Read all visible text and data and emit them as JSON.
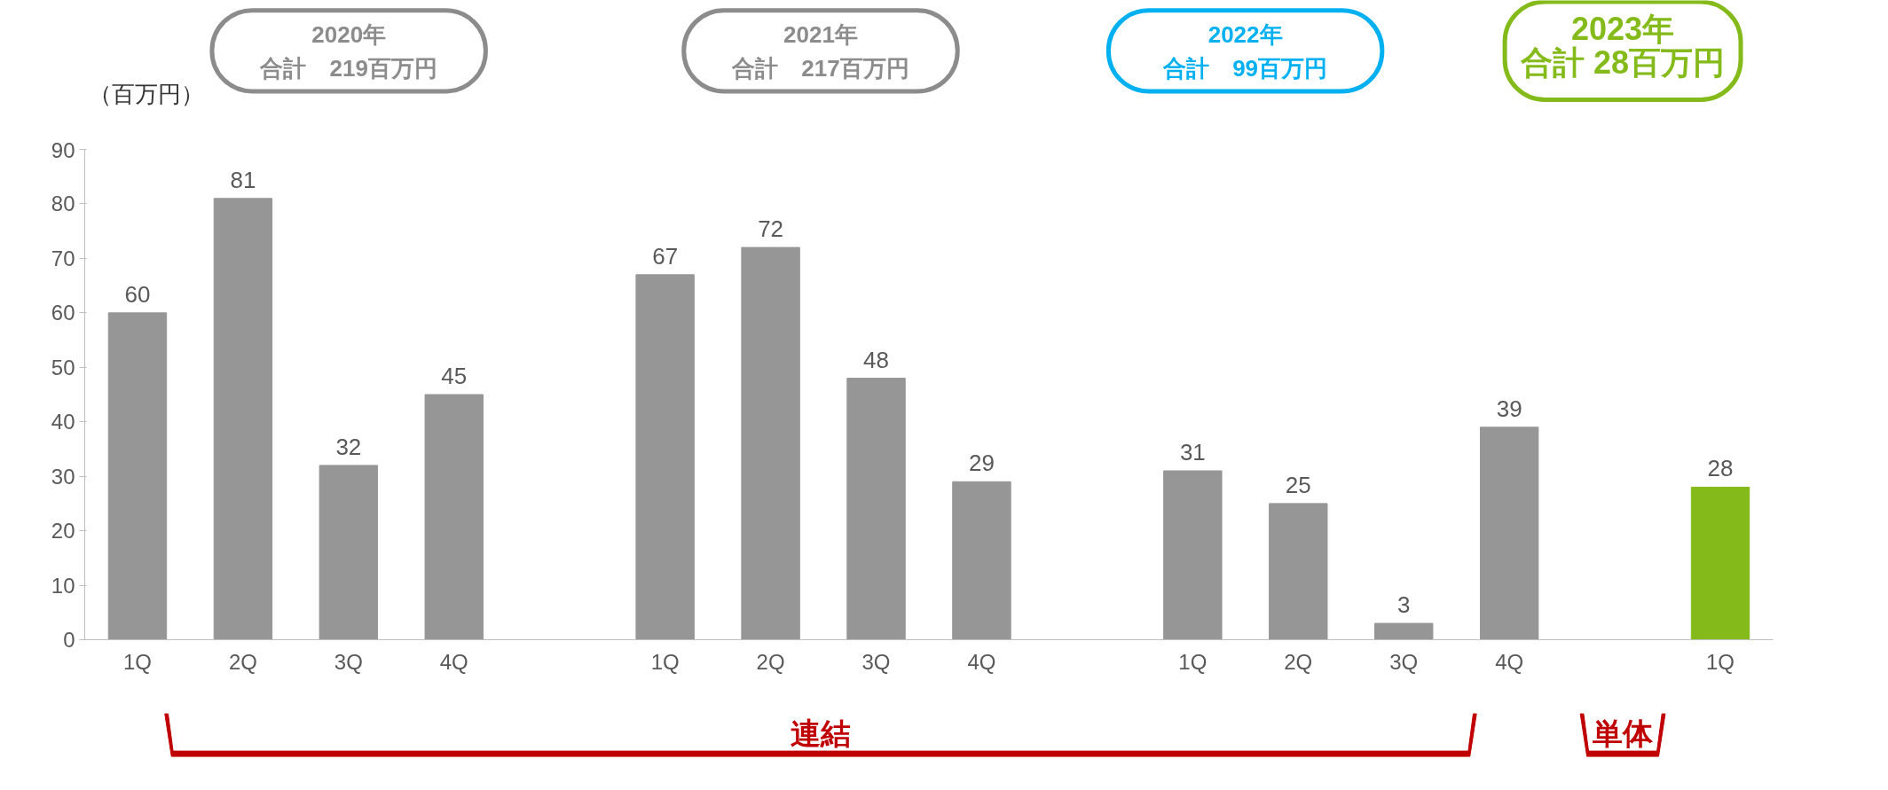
{
  "chart_data": {
    "type": "bar",
    "ylabel": "（百万円）",
    "categories": [
      "1Q",
      "2Q",
      "3Q",
      "4Q",
      null,
      "1Q",
      "2Q",
      "3Q",
      "4Q",
      null,
      "1Q",
      "2Q",
      "3Q",
      "4Q",
      null,
      "1Q"
    ],
    "values": [
      60,
      81,
      32,
      45,
      null,
      67,
      72,
      48,
      29,
      null,
      31,
      25,
      3,
      39,
      null,
      28
    ],
    "colors": [
      "#969696",
      "#969696",
      "#969696",
      "#969696",
      null,
      "#969696",
      "#969696",
      "#969696",
      "#969696",
      null,
      "#969696",
      "#969696",
      "#969696",
      "#969696",
      null,
      "#84bb1a"
    ],
    "ylim": [
      0,
      90
    ],
    "yticks": [
      0,
      10,
      20,
      30,
      40,
      50,
      60,
      70,
      80,
      90
    ],
    "grid": false,
    "data_labels": true,
    "annotations": [
      "2020年",
      "合計　219百万円",
      "2021年",
      "合計　217百万円",
      "2022年",
      "合計　99百万円",
      "2023年",
      "合計 28百万円",
      "連結",
      "単体"
    ]
  }
}
